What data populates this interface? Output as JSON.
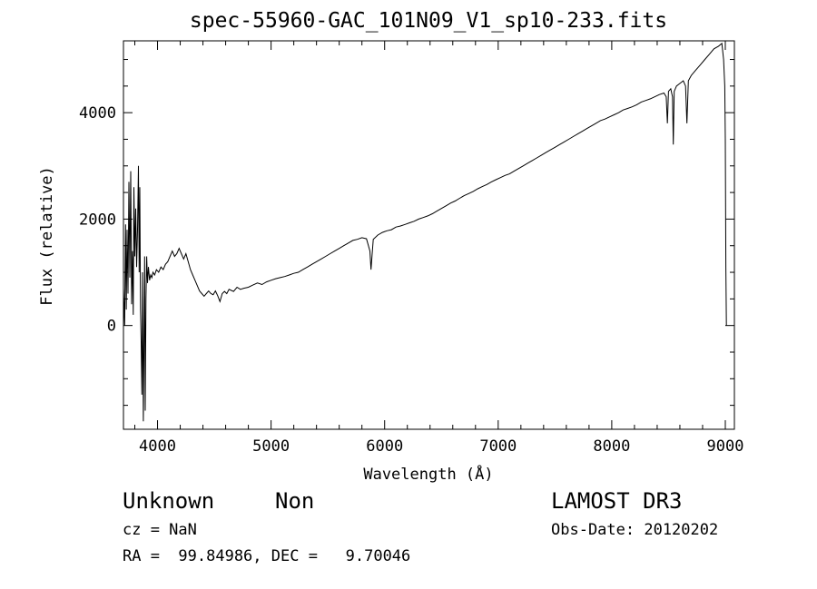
{
  "chart_data": {
    "type": "line",
    "title": "spec-55960-GAC_101N09_V1_sp10-233.fits",
    "xlabel": "Wavelength (Å)",
    "ylabel": "Flux (relative)",
    "xlim": [
      3700,
      9080
    ],
    "ylim": [
      -1950,
      5350
    ],
    "xticks": [
      4000,
      5000,
      6000,
      7000,
      8000,
      9000
    ],
    "yticks": [
      0,
      2000,
      4000
    ],
    "grid": false,
    "series": [
      {
        "values": [
          [
            3700,
            700
          ],
          [
            3710,
            0
          ],
          [
            3718,
            1900
          ],
          [
            3725,
            300
          ],
          [
            3732,
            1800
          ],
          [
            3740,
            600
          ],
          [
            3748,
            2700
          ],
          [
            3756,
            900
          ],
          [
            3764,
            2900
          ],
          [
            3772,
            400
          ],
          [
            3780,
            1400
          ],
          [
            3786,
            200
          ],
          [
            3792,
            2600
          ],
          [
            3800,
            1300
          ],
          [
            3808,
            2200
          ],
          [
            3816,
            1100
          ],
          [
            3824,
            1800
          ],
          [
            3832,
            3000
          ],
          [
            3838,
            1000
          ],
          [
            3844,
            2600
          ],
          [
            3850,
            300
          ],
          [
            3856,
            -300
          ],
          [
            3862,
            -1300
          ],
          [
            3868,
            1000
          ],
          [
            3875,
            -1800
          ],
          [
            3880,
            -600
          ],
          [
            3886,
            1300
          ],
          [
            3892,
            -1600
          ],
          [
            3898,
            500
          ],
          [
            3905,
            1300
          ],
          [
            3912,
            800
          ],
          [
            3920,
            1100
          ],
          [
            3930,
            850
          ],
          [
            3940,
            950
          ],
          [
            3950,
            900
          ],
          [
            3960,
            1000
          ],
          [
            3975,
            950
          ],
          [
            3990,
            1050
          ],
          [
            4010,
            1000
          ],
          [
            4030,
            1100
          ],
          [
            4050,
            1050
          ],
          [
            4070,
            1150
          ],
          [
            4090,
            1200
          ],
          [
            4110,
            1300
          ],
          [
            4130,
            1400
          ],
          [
            4150,
            1300
          ],
          [
            4170,
            1350
          ],
          [
            4190,
            1450
          ],
          [
            4210,
            1350
          ],
          [
            4230,
            1250
          ],
          [
            4250,
            1350
          ],
          [
            4270,
            1200
          ],
          [
            4290,
            1050
          ],
          [
            4310,
            950
          ],
          [
            4330,
            850
          ],
          [
            4350,
            750
          ],
          [
            4370,
            650
          ],
          [
            4390,
            600
          ],
          [
            4410,
            550
          ],
          [
            4430,
            600
          ],
          [
            4450,
            650
          ],
          [
            4470,
            600
          ],
          [
            4490,
            580
          ],
          [
            4510,
            650
          ],
          [
            4530,
            560
          ],
          [
            4550,
            450
          ],
          [
            4570,
            600
          ],
          [
            4590,
            640
          ],
          [
            4610,
            600
          ],
          [
            4630,
            680
          ],
          [
            4650,
            660
          ],
          [
            4670,
            640
          ],
          [
            4700,
            720
          ],
          [
            4730,
            680
          ],
          [
            4760,
            700
          ],
          [
            4800,
            720
          ],
          [
            4840,
            760
          ],
          [
            4880,
            800
          ],
          [
            4920,
            770
          ],
          [
            4960,
            820
          ],
          [
            5000,
            850
          ],
          [
            5040,
            880
          ],
          [
            5080,
            900
          ],
          [
            5120,
            920
          ],
          [
            5160,
            950
          ],
          [
            5200,
            980
          ],
          [
            5240,
            1000
          ],
          [
            5280,
            1050
          ],
          [
            5320,
            1100
          ],
          [
            5360,
            1150
          ],
          [
            5400,
            1200
          ],
          [
            5440,
            1250
          ],
          [
            5480,
            1300
          ],
          [
            5520,
            1350
          ],
          [
            5560,
            1400
          ],
          [
            5600,
            1450
          ],
          [
            5640,
            1500
          ],
          [
            5680,
            1550
          ],
          [
            5720,
            1600
          ],
          [
            5760,
            1620
          ],
          [
            5800,
            1650
          ],
          [
            5840,
            1630
          ],
          [
            5870,
            1400
          ],
          [
            5880,
            1050
          ],
          [
            5890,
            1350
          ],
          [
            5900,
            1620
          ],
          [
            5940,
            1700
          ],
          [
            5980,
            1750
          ],
          [
            6020,
            1780
          ],
          [
            6060,
            1800
          ],
          [
            6100,
            1850
          ],
          [
            6140,
            1870
          ],
          [
            6180,
            1900
          ],
          [
            6220,
            1930
          ],
          [
            6260,
            1960
          ],
          [
            6300,
            2000
          ],
          [
            6340,
            2030
          ],
          [
            6380,
            2060
          ],
          [
            6420,
            2100
          ],
          [
            6460,
            2150
          ],
          [
            6500,
            2200
          ],
          [
            6540,
            2250
          ],
          [
            6580,
            2300
          ],
          [
            6620,
            2340
          ],
          [
            6660,
            2390
          ],
          [
            6700,
            2440
          ],
          [
            6740,
            2480
          ],
          [
            6780,
            2520
          ],
          [
            6820,
            2570
          ],
          [
            6860,
            2610
          ],
          [
            6900,
            2650
          ],
          [
            6940,
            2700
          ],
          [
            6980,
            2740
          ],
          [
            7020,
            2780
          ],
          [
            7060,
            2820
          ],
          [
            7100,
            2850
          ],
          [
            7140,
            2900
          ],
          [
            7180,
            2950
          ],
          [
            7220,
            3000
          ],
          [
            7260,
            3050
          ],
          [
            7300,
            3100
          ],
          [
            7340,
            3150
          ],
          [
            7380,
            3200
          ],
          [
            7420,
            3250
          ],
          [
            7460,
            3300
          ],
          [
            7500,
            3350
          ],
          [
            7540,
            3400
          ],
          [
            7580,
            3450
          ],
          [
            7620,
            3500
          ],
          [
            7660,
            3550
          ],
          [
            7700,
            3600
          ],
          [
            7740,
            3650
          ],
          [
            7780,
            3700
          ],
          [
            7820,
            3750
          ],
          [
            7860,
            3800
          ],
          [
            7900,
            3850
          ],
          [
            7940,
            3880
          ],
          [
            7980,
            3920
          ],
          [
            8020,
            3960
          ],
          [
            8060,
            4000
          ],
          [
            8100,
            4050
          ],
          [
            8140,
            4080
          ],
          [
            8180,
            4110
          ],
          [
            8220,
            4150
          ],
          [
            8260,
            4200
          ],
          [
            8300,
            4230
          ],
          [
            8340,
            4260
          ],
          [
            8380,
            4300
          ],
          [
            8420,
            4340
          ],
          [
            8460,
            4370
          ],
          [
            8480,
            4300
          ],
          [
            8490,
            3800
          ],
          [
            8500,
            4400
          ],
          [
            8520,
            4450
          ],
          [
            8535,
            4300
          ],
          [
            8542,
            3400
          ],
          [
            8550,
            4400
          ],
          [
            8570,
            4500
          ],
          [
            8600,
            4550
          ],
          [
            8630,
            4600
          ],
          [
            8650,
            4500
          ],
          [
            8662,
            3800
          ],
          [
            8675,
            4600
          ],
          [
            8700,
            4700
          ],
          [
            8740,
            4800
          ],
          [
            8780,
            4900
          ],
          [
            8820,
            5000
          ],
          [
            8860,
            5100
          ],
          [
            8900,
            5200
          ],
          [
            8940,
            5250
          ],
          [
            8970,
            5300
          ],
          [
            8985,
            5000
          ],
          [
            8995,
            4500
          ],
          [
            9000,
            3500
          ],
          [
            9005,
            1100
          ],
          [
            9010,
            0
          ]
        ]
      }
    ]
  },
  "annotations": {
    "object": "Unknown",
    "class": "Non",
    "cz": "cz = NaN",
    "radec": "RA =  99.84986, DEC =   9.70046",
    "survey": "LAMOST DR3",
    "obsdate": "Obs-Date: 20120202"
  }
}
